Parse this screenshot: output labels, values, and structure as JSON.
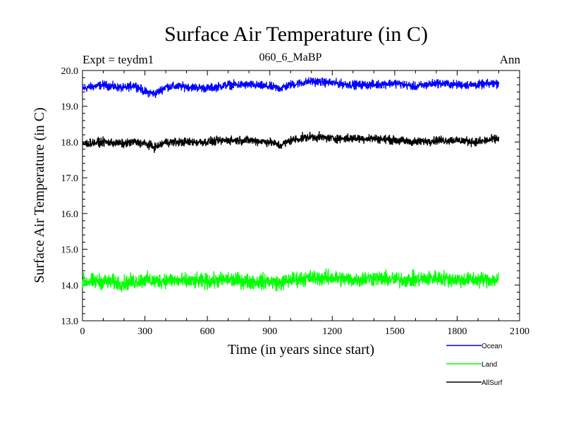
{
  "chart_data": {
    "type": "line",
    "title": "Surface Air Temperature (in C)",
    "subtitle": "060_6_MaBP",
    "expt_label": "Expt = teydm1",
    "period_label": "Ann",
    "xlabel": "Time (in years since start)",
    "ylabel": "Surface Air Temperature (in C)",
    "xlim": [
      0,
      2100
    ],
    "ylim": [
      13.0,
      20.0
    ],
    "x_ticks": [
      0,
      300,
      600,
      900,
      1200,
      1500,
      1800,
      2100
    ],
    "y_ticks": [
      13.0,
      14.0,
      15.0,
      16.0,
      17.0,
      18.0,
      19.0,
      20.0
    ],
    "x_tick_labels": [
      "0",
      "300",
      "600",
      "900",
      "1200",
      "1500",
      "1800",
      "2100"
    ],
    "y_tick_labels": [
      "13.0",
      "14.0",
      "15.0",
      "16.0",
      "17.0",
      "18.0",
      "19.0",
      "20.0"
    ],
    "x": [
      0,
      100,
      200,
      250,
      300,
      350,
      400,
      500,
      600,
      700,
      800,
      900,
      950,
      1000,
      1100,
      1200,
      1300,
      1400,
      1500,
      1600,
      1700,
      1800,
      1900,
      2000
    ],
    "series": [
      {
        "name": "Ocean",
        "color": "#0000ff",
        "values": [
          19.5,
          19.6,
          19.5,
          19.6,
          19.4,
          19.35,
          19.55,
          19.55,
          19.5,
          19.6,
          19.6,
          19.55,
          19.5,
          19.6,
          19.7,
          19.65,
          19.6,
          19.6,
          19.65,
          19.55,
          19.65,
          19.6,
          19.6,
          19.65
        ],
        "noise": 0.1
      },
      {
        "name": "Land",
        "color": "#00ff00",
        "values": [
          14.1,
          14.1,
          14.05,
          14.1,
          14.15,
          14.1,
          14.15,
          14.1,
          14.1,
          14.15,
          14.1,
          14.1,
          14.05,
          14.15,
          14.2,
          14.2,
          14.15,
          14.2,
          14.15,
          14.15,
          14.2,
          14.15,
          14.15,
          14.15
        ],
        "noise": 0.18
      },
      {
        "name": "AllSurf",
        "color": "#000000",
        "values": [
          17.95,
          18.0,
          17.95,
          18.0,
          17.95,
          17.85,
          18.0,
          18.0,
          18.0,
          18.05,
          18.05,
          18.0,
          17.9,
          18.05,
          18.15,
          18.1,
          18.1,
          18.1,
          18.05,
          18.0,
          18.05,
          18.05,
          18.0,
          18.1
        ],
        "noise": 0.1
      }
    ]
  }
}
